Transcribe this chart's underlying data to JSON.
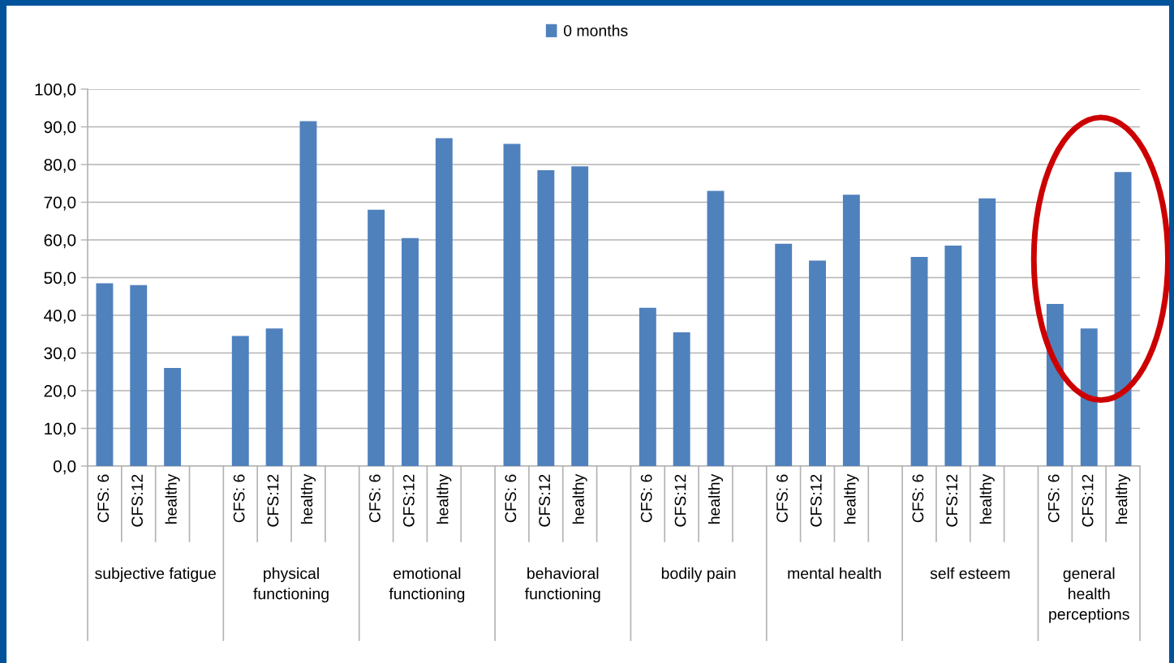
{
  "chart_data": {
    "type": "bar",
    "categories": [
      "CFS: 6",
      "CFS:12",
      "healthy",
      null,
      "CFS: 6",
      "CFS:12",
      "healthy",
      null,
      "CFS: 6",
      "CFS:12",
      "healthy",
      null,
      "CFS: 6",
      "CFS:12",
      "healthy",
      null,
      "CFS: 6",
      "CFS:12",
      "healthy",
      null,
      "CFS: 6",
      "CFS:12",
      "healthy",
      null,
      "CFS: 6",
      "CFS:12",
      "healthy",
      null,
      "CFS: 6",
      "CFS:12",
      "healthy"
    ],
    "series": [
      {
        "name": "0 months",
        "color": "#4f81bd",
        "values": [
          48.5,
          48,
          26,
          null,
          34.5,
          36.5,
          91.5,
          null,
          68,
          60.5,
          87,
          null,
          85.5,
          78.5,
          79.5,
          null,
          42,
          35.5,
          73,
          null,
          59,
          54.5,
          72,
          null,
          55.5,
          58.5,
          71,
          null,
          43,
          36.5,
          78
        ]
      }
    ],
    "annotations": [
      "subjective fatigue",
      "physical functioning",
      "emotional functioning",
      "behavioral functioning",
      "bodily pain",
      "mental health",
      "self esteem",
      "general health perceptions"
    ],
    "ylim": [
      0,
      100
    ],
    "yticks": [
      {
        "value": 0,
        "label": "0,0"
      },
      {
        "value": 10,
        "label": "10,0"
      },
      {
        "value": 20,
        "label": "20,0"
      },
      {
        "value": 30,
        "label": "30,0"
      },
      {
        "value": 40,
        "label": "40,0"
      },
      {
        "value": 50,
        "label": "50,0"
      },
      {
        "value": 60,
        "label": "60,0"
      },
      {
        "value": 70,
        "label": "70,0"
      },
      {
        "value": 80,
        "label": "80,0"
      },
      {
        "value": 90,
        "label": "90,0"
      },
      {
        "value": 100,
        "label": "100,0"
      }
    ],
    "grid": "y",
    "legend": "top"
  }
}
